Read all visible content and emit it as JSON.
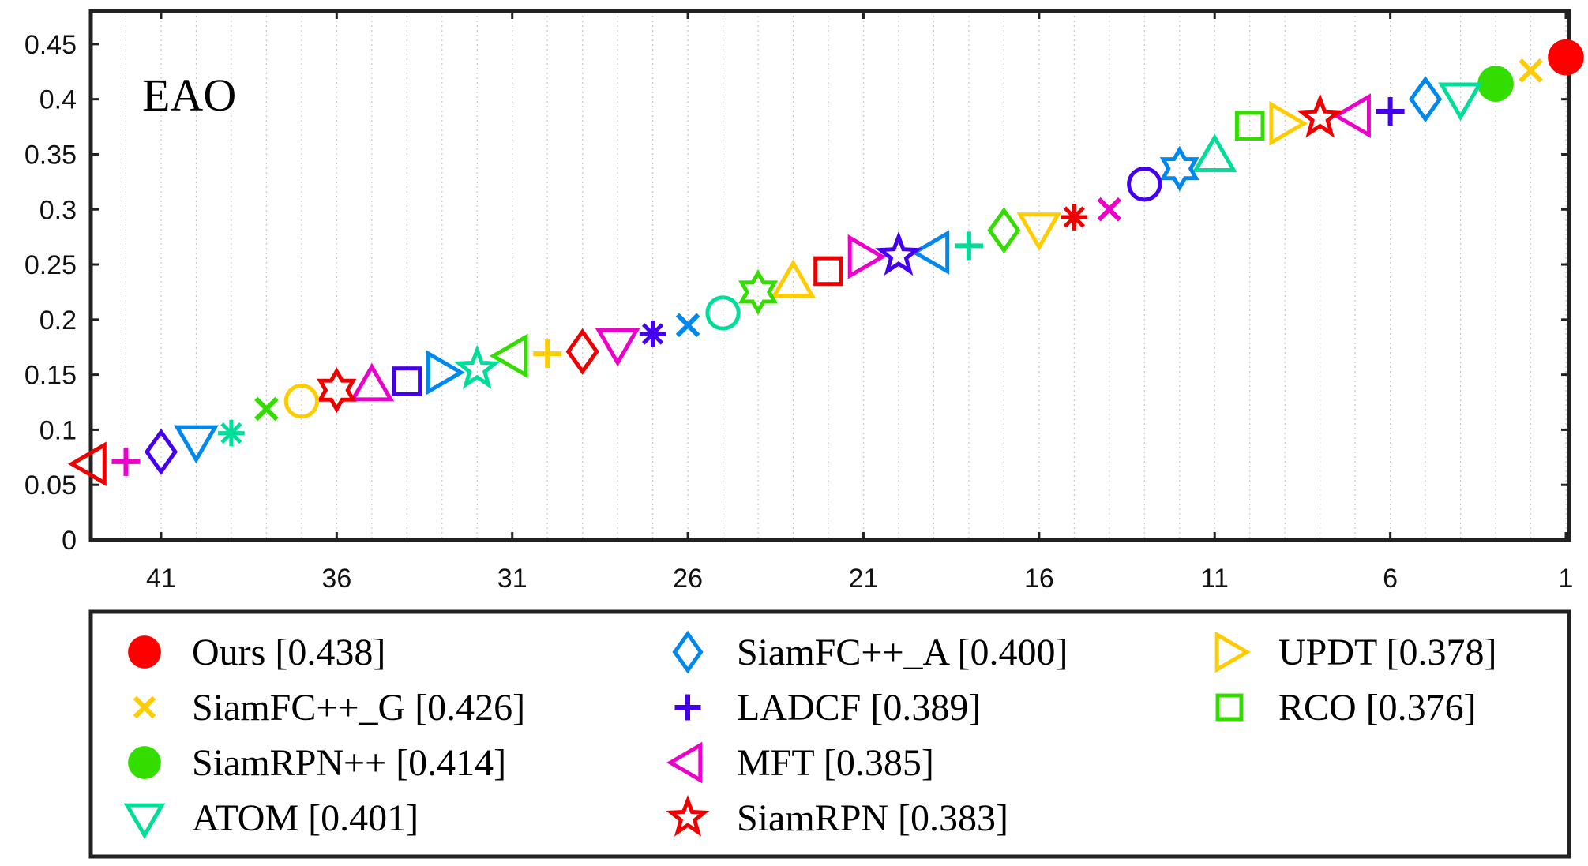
{
  "chart_data": {
    "type": "scatter",
    "inset_label": "EAO",
    "xlabel": "",
    "ylabel": "",
    "x_reversed": true,
    "xlim": [
      43,
      1
    ],
    "ylim": [
      0,
      0.48
    ],
    "x_ticks": [
      "41",
      "36",
      "31",
      "26",
      "21",
      "16",
      "11",
      "6",
      "1"
    ],
    "y_ticks": [
      "0",
      "0.05",
      "0.1",
      "0.15",
      "0.2",
      "0.25",
      "0.3",
      "0.35",
      "0.4",
      "0.45"
    ],
    "grid": "vertical dotted at each rank",
    "legend_position": "below",
    "points": [
      {
        "rank": 1,
        "value": 0.438,
        "marker": "filled-circle",
        "color": "#ff0000"
      },
      {
        "rank": 2,
        "value": 0.426,
        "marker": "x",
        "color": "#ffcc00"
      },
      {
        "rank": 3,
        "value": 0.414,
        "marker": "filled-circle",
        "color": "#33dd00"
      },
      {
        "rank": 4,
        "value": 0.401,
        "marker": "triangle-down",
        "color": "#00dd99"
      },
      {
        "rank": 5,
        "value": 0.4,
        "marker": "diamond",
        "color": "#0088ee"
      },
      {
        "rank": 6,
        "value": 0.389,
        "marker": "plus",
        "color": "#4400ee"
      },
      {
        "rank": 7,
        "value": 0.385,
        "marker": "triangle-left",
        "color": "#ee00cc"
      },
      {
        "rank": 8,
        "value": 0.383,
        "marker": "star",
        "color": "#ee0000"
      },
      {
        "rank": 9,
        "value": 0.378,
        "marker": "triangle-right",
        "color": "#ffcc00"
      },
      {
        "rank": 10,
        "value": 0.376,
        "marker": "square",
        "color": "#33dd00"
      },
      {
        "rank": 11,
        "value": 0.348,
        "marker": "triangle-up",
        "color": "#00dd99"
      },
      {
        "rank": 12,
        "value": 0.337,
        "marker": "hexagram",
        "color": "#0088ee"
      },
      {
        "rank": 13,
        "value": 0.323,
        "marker": "circle",
        "color": "#4400ee"
      },
      {
        "rank": 14,
        "value": 0.3,
        "marker": "x",
        "color": "#ee00cc"
      },
      {
        "rank": 15,
        "value": 0.293,
        "marker": "asterisk",
        "color": "#ee0000"
      },
      {
        "rank": 16,
        "value": 0.283,
        "marker": "triangle-down",
        "color": "#ffcc00"
      },
      {
        "rank": 17,
        "value": 0.281,
        "marker": "diamond",
        "color": "#33dd00"
      },
      {
        "rank": 18,
        "value": 0.267,
        "marker": "plus",
        "color": "#00dd99"
      },
      {
        "rank": 19,
        "value": 0.261,
        "marker": "triangle-left",
        "color": "#0088ee"
      },
      {
        "rank": 20,
        "value": 0.258,
        "marker": "star",
        "color": "#4400ee"
      },
      {
        "rank": 21,
        "value": 0.257,
        "marker": "triangle-right",
        "color": "#ee00cc"
      },
      {
        "rank": 22,
        "value": 0.244,
        "marker": "square",
        "color": "#ee0000"
      },
      {
        "rank": 23,
        "value": 0.234,
        "marker": "triangle-up",
        "color": "#ffcc00"
      },
      {
        "rank": 24,
        "value": 0.225,
        "marker": "hexagram",
        "color": "#33dd00"
      },
      {
        "rank": 25,
        "value": 0.206,
        "marker": "circle",
        "color": "#00dd99"
      },
      {
        "rank": 26,
        "value": 0.195,
        "marker": "x",
        "color": "#0088ee"
      },
      {
        "rank": 27,
        "value": 0.187,
        "marker": "asterisk",
        "color": "#4400ee"
      },
      {
        "rank": 28,
        "value": 0.178,
        "marker": "triangle-down",
        "color": "#ee00cc"
      },
      {
        "rank": 29,
        "value": 0.171,
        "marker": "diamond",
        "color": "#ee0000"
      },
      {
        "rank": 30,
        "value": 0.169,
        "marker": "plus",
        "color": "#ffcc00"
      },
      {
        "rank": 31,
        "value": 0.167,
        "marker": "triangle-left",
        "color": "#33dd00"
      },
      {
        "rank": 32,
        "value": 0.155,
        "marker": "star",
        "color": "#00dd99"
      },
      {
        "rank": 33,
        "value": 0.152,
        "marker": "triangle-right",
        "color": "#0088ee"
      },
      {
        "rank": 34,
        "value": 0.144,
        "marker": "square",
        "color": "#4400ee"
      },
      {
        "rank": 35,
        "value": 0.14,
        "marker": "triangle-up",
        "color": "#ee00cc"
      },
      {
        "rank": 36,
        "value": 0.136,
        "marker": "hexagram",
        "color": "#ee0000"
      },
      {
        "rank": 37,
        "value": 0.126,
        "marker": "circle",
        "color": "#ffcc00"
      },
      {
        "rank": 38,
        "value": 0.119,
        "marker": "x",
        "color": "#33dd00"
      },
      {
        "rank": 39,
        "value": 0.097,
        "marker": "asterisk",
        "color": "#00dd99"
      },
      {
        "rank": 40,
        "value": 0.09,
        "marker": "triangle-down",
        "color": "#0088ee"
      },
      {
        "rank": 41,
        "value": 0.08,
        "marker": "diamond",
        "color": "#4400ee"
      },
      {
        "rank": 42,
        "value": 0.071,
        "marker": "plus",
        "color": "#ee00cc"
      },
      {
        "rank": 43,
        "value": 0.069,
        "marker": "triangle-left",
        "color": "#ee0000"
      }
    ],
    "legend": [
      {
        "label": "Ours [0.438]",
        "marker": "filled-circle",
        "color": "#ff0000"
      },
      {
        "label": "SiamFC++_G [0.426]",
        "marker": "x",
        "color": "#ffcc00"
      },
      {
        "label": "SiamRPN++ [0.414]",
        "marker": "filled-circle",
        "color": "#33dd00"
      },
      {
        "label": "ATOM [0.401]",
        "marker": "triangle-down",
        "color": "#00dd99"
      },
      {
        "label": "SiamFC++_A [0.400]",
        "marker": "diamond",
        "color": "#0088ee"
      },
      {
        "label": "LADCF [0.389]",
        "marker": "plus",
        "color": "#4400ee"
      },
      {
        "label": "MFT [0.385]",
        "marker": "triangle-left",
        "color": "#ee00cc"
      },
      {
        "label": "SiamRPN [0.383]",
        "marker": "star",
        "color": "#ee0000"
      },
      {
        "label": "UPDT [0.378]",
        "marker": "triangle-right",
        "color": "#ffcc00"
      },
      {
        "label": "RCO [0.376]",
        "marker": "square",
        "color": "#33dd00"
      }
    ]
  }
}
